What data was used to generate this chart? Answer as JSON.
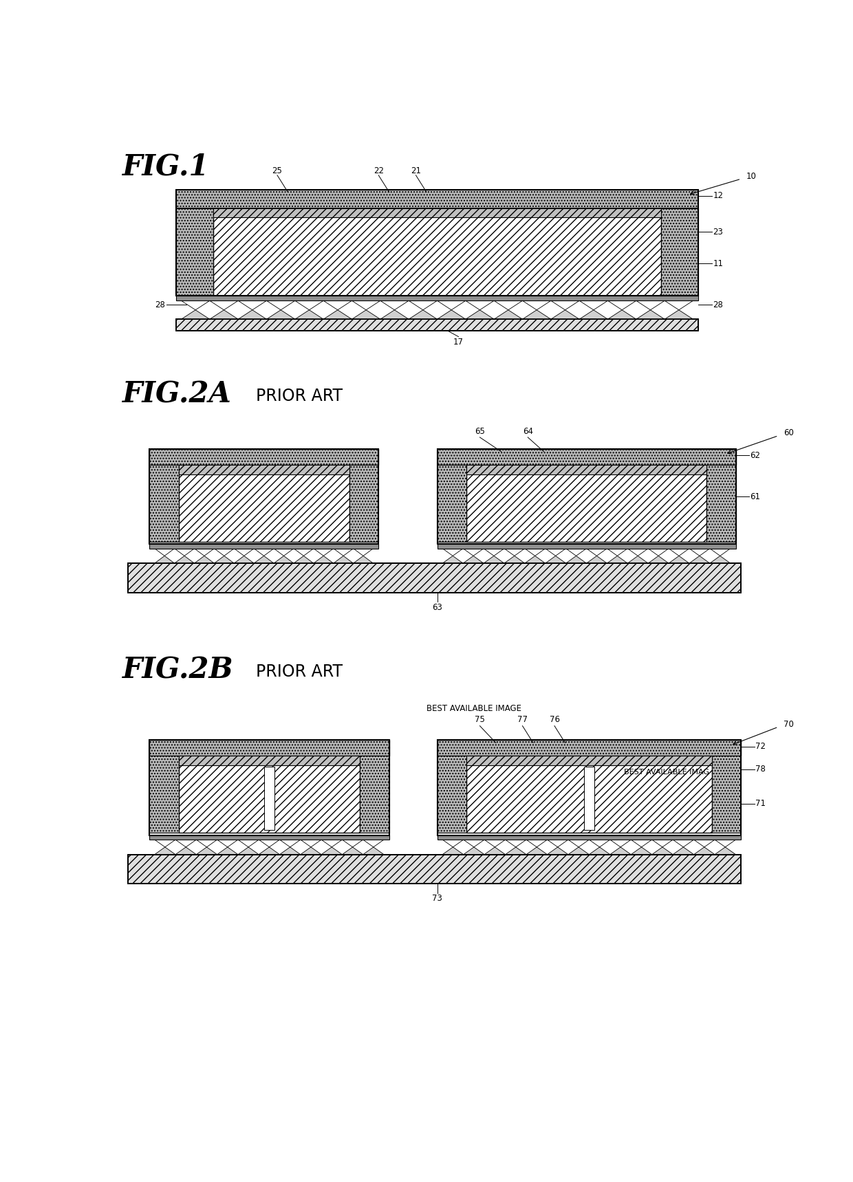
{
  "bg_color": "#ffffff",
  "fig_width": 12.4,
  "fig_height": 17.19,
  "fig1_title": "FIG.1",
  "fig2a_title": "FIG.2A",
  "fig2a_subtitle": "PRIOR ART",
  "fig2b_title": "FIG.2B",
  "fig2b_subtitle": "PRIOR ART",
  "best_available_image_1": "BEST AVAILABLE IMAGE",
  "best_available_image_2": "BEST AVAILABLE IMAG"
}
